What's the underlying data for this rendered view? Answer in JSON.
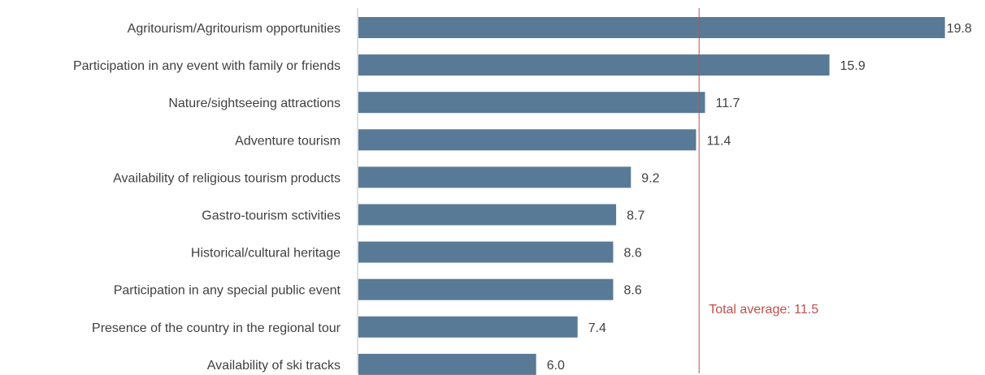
{
  "chart_data": {
    "type": "bar",
    "orientation": "horizontal",
    "categories": [
      "Agritourism/Agritourism opportunities",
      "Participation in any event with family or friends",
      "Nature/sightseeing attractions",
      "Adventure tourism",
      "Availability of religious tourism products",
      "Gastro-tourism sctivities",
      "Historical/cultural heritage",
      "Participation in any special public event",
      "Presence of the country in the regional tour",
      "Availability of ski tracks"
    ],
    "values": [
      19.8,
      15.9,
      11.7,
      11.4,
      9.2,
      8.7,
      8.6,
      8.6,
      7.4,
      6.0
    ],
    "value_labels": [
      "19.8",
      "15.9",
      "11.7",
      "11.4",
      "9.2",
      "8.7",
      "8.6",
      "8.6",
      "7.4",
      "6.0"
    ],
    "xlim": [
      0,
      20
    ],
    "grid": false,
    "legend": "none",
    "reference_line": {
      "value": 11.5,
      "label": "Total average: 11.5"
    },
    "colors": {
      "bar": "#587a97",
      "axis": "#bfbfbf",
      "reference": "#c0504d",
      "reference_label": "#c0504d",
      "text": "#404040"
    }
  }
}
